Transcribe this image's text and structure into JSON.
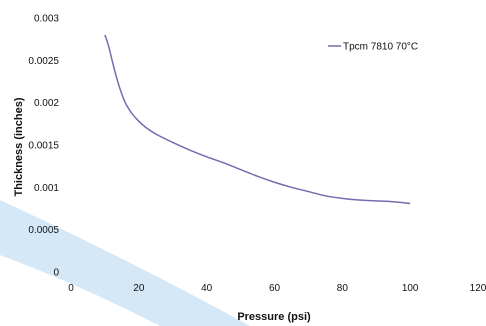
{
  "chart_data": {
    "type": "line",
    "title": "",
    "xlabel": "Pressure (psi)",
    "ylabel": "Thickness (inches)",
    "xlim": [
      0,
      120
    ],
    "ylim": [
      0,
      0.003
    ],
    "x_ticks": [
      0,
      20,
      40,
      60,
      80,
      100,
      120
    ],
    "y_ticks": [
      0,
      0.0005,
      0.001,
      0.0015,
      0.002,
      0.0025,
      0.003
    ],
    "x_tick_labels": [
      "0",
      "20",
      "40",
      "60",
      "80",
      "100",
      "120"
    ],
    "y_tick_labels": [
      "0",
      "0.0005",
      "0.001",
      "0.0015",
      "0.002",
      "0.0025",
      "0.003"
    ],
    "grid": false,
    "legend_position": "top-right",
    "series": [
      {
        "name": "Tpcm 7810 70°C",
        "color": "#7B68AE",
        "x": [
          10,
          11,
          12,
          13,
          14,
          15,
          16,
          17,
          18,
          20,
          22,
          25,
          30,
          35,
          40,
          45,
          50,
          55,
          60,
          65,
          70,
          75,
          80,
          85,
          90,
          95,
          100
        ],
        "y": [
          0.0028,
          0.00268,
          0.00252,
          0.00236,
          0.00222,
          0.0021,
          0.002,
          0.00193,
          0.00187,
          0.00178,
          0.00171,
          0.00163,
          0.00153,
          0.00144,
          0.00136,
          0.00129,
          0.00121,
          0.00113,
          0.00106,
          0.001,
          0.00095,
          0.0009,
          0.00087,
          0.00085,
          0.00084,
          0.00083,
          0.00081
        ]
      }
    ]
  }
}
